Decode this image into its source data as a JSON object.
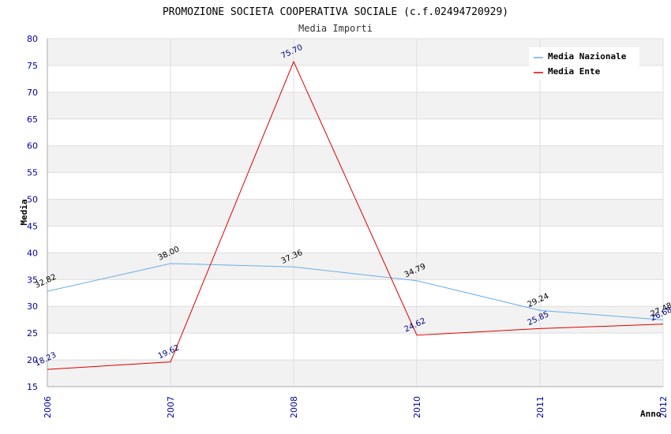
{
  "chart_data": {
    "type": "line",
    "title": "PROMOZIONE SOCIETA COOPERATIVA SOCIALE (c.f.02494720929)",
    "subtitle": "Media Importi",
    "xlabel": "Anno",
    "ylabel": "Media",
    "categories": [
      "2006",
      "2007",
      "2008",
      "2010",
      "2011",
      "2012"
    ],
    "ylim": [
      15,
      80
    ],
    "ytick_step": 5,
    "grid": true,
    "legend_position": "top-right",
    "series": [
      {
        "name": "Media Nazionale",
        "color": "#6aaee8",
        "label_color": "#000000",
        "values": [
          32.82,
          38.0,
          37.36,
          34.79,
          29.24,
          27.48
        ],
        "labels": [
          "32.82",
          "38.00",
          "37.36",
          "34.79",
          "29.24",
          "27.48"
        ]
      },
      {
        "name": "Media Ente",
        "color": "#dd0000",
        "label_color": "#000080",
        "values": [
          18.23,
          19.62,
          75.7,
          24.62,
          25.85,
          26.68
        ],
        "labels": [
          "18.23",
          "19.62",
          "75.70",
          "24.62",
          "25.85",
          "26.68"
        ]
      }
    ]
  }
}
